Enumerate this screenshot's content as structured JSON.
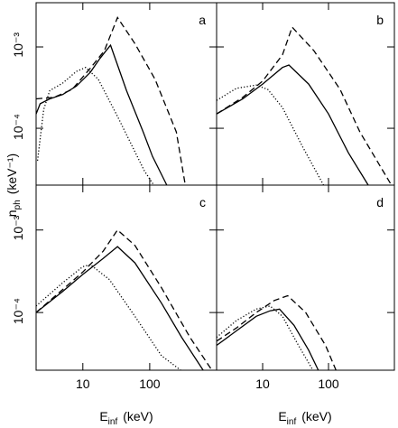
{
  "ylabel": {
    "symbol": "n",
    "subscript": "ph",
    "unit": "(keV⁻¹)"
  },
  "xlabel": {
    "symbol": "E",
    "subscript": "inf",
    "unit": "(keV)"
  },
  "chart_data": [
    {
      "type": "line",
      "label": "a",
      "xlog": true,
      "ylog": true,
      "xlim": [
        2,
        1000
      ],
      "ylim": [
        2e-05,
        0.0035
      ],
      "xticks": [
        10,
        100
      ],
      "yticks": [
        {
          "value": 0.001,
          "label": "10⁻³"
        },
        {
          "value": 0.0001,
          "label": "10⁻⁴"
        }
      ],
      "series": [
        {
          "color": "#000",
          "dash": "solid",
          "x": [
            2,
            2.3,
            3.2,
            5,
            8,
            13,
            18,
            23,
            26,
            45,
            80,
            110,
            180
          ],
          "values": [
            0.00015,
            0.0002,
            0.00023,
            0.00026,
            0.00033,
            0.00049,
            0.00072,
            0.00093,
            0.00105,
            0.00029,
            9e-05,
            4.5e-05,
            2e-05
          ]
        },
        {
          "color": "#000",
          "dash": "dashed",
          "x": [
            2,
            3.7,
            6.9,
            13,
            21,
            33,
            60,
            120,
            250,
            340
          ],
          "values": [
            0.00023,
            0.00024,
            0.0003,
            0.00055,
            0.0009,
            0.0023,
            0.0011,
            0.0004,
            9e-05,
            2e-05
          ]
        },
        {
          "color": "#000",
          "dash": "dotted",
          "x": [
            2.1,
            2.6,
            3.2,
            5,
            8,
            11,
            17,
            33,
            83,
            115
          ],
          "values": [
            4e-05,
            0.00017,
            0.00029,
            0.00036,
            0.0005,
            0.00056,
            0.0004,
            0.00014,
            3e-05,
            2e-05
          ]
        }
      ]
    },
    {
      "type": "line",
      "label": "b",
      "xlog": true,
      "ylog": true,
      "xlim": [
        2,
        1000
      ],
      "ylim": [
        2e-05,
        0.0035
      ],
      "xticks": [
        10,
        100
      ],
      "yticks": [
        {
          "value": 0.001,
          "label": "10⁻³"
        },
        {
          "value": 0.0001,
          "label": "10⁻⁴"
        }
      ],
      "series": [
        {
          "color": "#000",
          "dash": "solid",
          "x": [
            2,
            5,
            10,
            20,
            25,
            50,
            100,
            200,
            400
          ],
          "values": [
            0.00015,
            0.00023,
            0.00035,
            0.00056,
            0.0006,
            0.00035,
            0.00015,
            5e-05,
            2e-05
          ]
        },
        {
          "color": "#000",
          "dash": "dashed",
          "x": [
            2,
            5,
            10,
            20,
            28,
            60,
            150,
            300,
            900
          ],
          "values": [
            0.00015,
            0.00024,
            0.00038,
            0.0008,
            0.00175,
            0.0009,
            0.0003,
            9e-05,
            2e-05
          ]
        },
        {
          "color": "#000",
          "dash": "dotted",
          "x": [
            2,
            4,
            8,
            12,
            20,
            40,
            84
          ],
          "values": [
            0.00022,
            0.00031,
            0.00034,
            0.0003,
            0.00018,
            6e-05,
            2e-05
          ]
        }
      ]
    },
    {
      "type": "line",
      "label": "c",
      "xlog": true,
      "ylog": true,
      "xlim": [
        2,
        1000
      ],
      "ylim": [
        2e-05,
        0.0035
      ],
      "xticks": [
        10,
        100
      ],
      "yticks": [
        {
          "value": 0.001,
          "label": "10⁻³"
        },
        {
          "value": 0.0001,
          "label": "10⁻⁴"
        }
      ],
      "series": [
        {
          "color": "#000",
          "dash": "solid",
          "x": [
            2,
            5,
            10,
            20,
            33,
            60,
            150,
            300,
            630
          ],
          "values": [
            0.0001,
            0.00018,
            0.00029,
            0.00045,
            0.00063,
            0.0004,
            0.00013,
            5e-05,
            2e-05
          ]
        },
        {
          "color": "#000",
          "dash": "dashed",
          "x": [
            2,
            5,
            10,
            20,
            33,
            60,
            150,
            400,
            850
          ],
          "values": [
            0.0001,
            0.00019,
            0.00031,
            0.00055,
            0.001,
            0.00065,
            0.0002,
            5e-05,
            2e-05
          ]
        },
        {
          "color": "#000",
          "dash": "dotted",
          "x": [
            2,
            5,
            10,
            13,
            25,
            60,
            150,
            290
          ],
          "values": [
            0.00012,
            0.00023,
            0.00036,
            0.00038,
            0.00025,
            9e-05,
            3e-05,
            2e-05
          ]
        }
      ]
    },
    {
      "type": "line",
      "label": "d",
      "xlog": true,
      "ylog": true,
      "xlim": [
        2,
        1000
      ],
      "ylim": [
        2e-05,
        0.0035
      ],
      "xticks": [
        10,
        100
      ],
      "yticks": [
        {
          "value": 0.001,
          "label": "10⁻³"
        },
        {
          "value": 0.0001,
          "label": "10⁻⁴"
        }
      ],
      "series": [
        {
          "color": "#000",
          "dash": "solid",
          "x": [
            2,
            4,
            8,
            13,
            18,
            30,
            50,
            70
          ],
          "values": [
            4e-05,
            6e-05,
            9e-05,
            0.000105,
            0.00011,
            7e-05,
            3.5e-05,
            2e-05
          ]
        },
        {
          "color": "#000",
          "dash": "dashed",
          "x": [
            2,
            4,
            8,
            15,
            24,
            45,
            90,
            130
          ],
          "values": [
            4.5e-05,
            6.5e-05,
            0.0001,
            0.00014,
            0.00016,
            0.0001,
            4e-05,
            2e-05
          ]
        },
        {
          "color": "#000",
          "dash": "dotted",
          "x": [
            2,
            4,
            8,
            13,
            20,
            35,
            58
          ],
          "values": [
            5e-05,
            8e-05,
            0.00011,
            0.00012,
            9e-05,
            4e-05,
            2e-05
          ]
        }
      ]
    }
  ]
}
